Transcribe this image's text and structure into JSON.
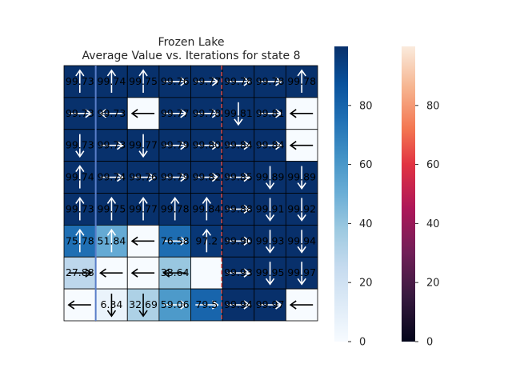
{
  "chart_data": {
    "type": "heatmap",
    "title_line1": "Frozen Lake",
    "title_line2": "Average Value vs. Iterations for state 8",
    "rows": 8,
    "cols": 8,
    "value_range": [
      0,
      100
    ],
    "values": [
      [
        99.73,
        99.74,
        99.75,
        99.76,
        99.77,
        99.78,
        99.78,
        99.78
      ],
      [
        99.73,
        99.73,
        0,
        99.77,
        99.78,
        99.81,
        99.81,
        0
      ],
      [
        99.73,
        99.73,
        99.77,
        99.79,
        99.8,
        99.84,
        99.84,
        0
      ],
      [
        99.74,
        99.74,
        99.76,
        99.79,
        99.82,
        99.85,
        99.89,
        99.89
      ],
      [
        99.73,
        99.75,
        99.77,
        99.78,
        99.84,
        99.88,
        99.91,
        99.92
      ],
      [
        75.78,
        51.84,
        0,
        76.58,
        97.2,
        99.9,
        99.93,
        99.94
      ],
      [
        27.88,
        0,
        0,
        38.64,
        0,
        99.93,
        99.95,
        99.97
      ],
      [
        0,
        6.34,
        32.69,
        59.06,
        79.5,
        99.94,
        99.97,
        0
      ]
    ],
    "labels": [
      [
        "99.73",
        "99.74",
        "99.75",
        "99.76",
        "99.77",
        "99.78",
        "99.78",
        "99.78"
      ],
      [
        "99.73",
        "99.73",
        "",
        "99.77",
        "99.78",
        "99.81",
        "99.81",
        ""
      ],
      [
        "99.73",
        "99.73",
        "99.77",
        "99.79",
        "99.80",
        "99.84",
        "99.84",
        ""
      ],
      [
        "99.74",
        "99.74",
        "99.76",
        "99.79",
        "99.82",
        "99.85",
        "99.89",
        "99.89"
      ],
      [
        "99.73",
        "99.75",
        "99.77",
        "99.78",
        "99.84",
        "99.88",
        "99.91",
        "99.92"
      ],
      [
        "75.78",
        "51.84",
        "",
        "76.58",
        "97.2",
        "99.90",
        "99.93",
        "99.94"
      ],
      [
        "27.88",
        "",
        "",
        "38.64",
        "",
        "99.93",
        "99.95",
        "99.97"
      ],
      [
        "",
        "6.34",
        "32.69",
        "59.06",
        "79.5",
        "99.94",
        "99.97",
        ""
      ]
    ],
    "arrows": [
      [
        "up",
        "up",
        "up",
        "right",
        "right",
        "right",
        "right",
        "up"
      ],
      [
        "right",
        "left",
        "left",
        "right",
        "right",
        "down",
        "right",
        "left"
      ],
      [
        "down",
        "right",
        "down",
        "right",
        "right",
        "right",
        "right",
        "left"
      ],
      [
        "up",
        "right",
        "right",
        "right",
        "right",
        "right",
        "down",
        "down"
      ],
      [
        "up",
        "up",
        "up",
        "up",
        "up",
        "right",
        "down",
        "down"
      ],
      [
        "up",
        "up",
        "left",
        "right",
        "up",
        "right",
        "down",
        "down"
      ],
      [
        "right",
        "left",
        "left",
        "left",
        "",
        "right",
        "down",
        "down"
      ],
      [
        "left",
        "down",
        "down",
        "right",
        "right",
        "right",
        "right",
        "left"
      ]
    ],
    "colorbars": [
      {
        "colormap": "Blues",
        "ticks": [
          "0",
          "20",
          "40",
          "60",
          "80"
        ]
      },
      {
        "colormap": "rocket",
        "ticks": [
          "0",
          "20",
          "40",
          "60",
          "80"
        ]
      }
    ],
    "overlays": {
      "vertical_line_blue": {
        "color": "#5a7ec8",
        "style": "solid",
        "at_col": 1.0
      },
      "vertical_line_red": {
        "color": "#d44a4a",
        "style": "dashed",
        "at_col": 5.0
      }
    }
  }
}
